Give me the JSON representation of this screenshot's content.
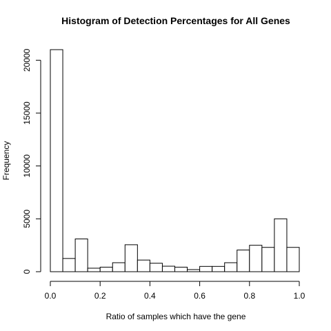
{
  "chart_data": {
    "type": "bar",
    "subtype": "histogram",
    "title": "Histogram of Detection Percentages for All Genes",
    "xlabel": "Ratio of samples which have the gene",
    "ylabel": "Frequency",
    "bin_edges": [
      0.0,
      0.05,
      0.1,
      0.15,
      0.2,
      0.25,
      0.3,
      0.35,
      0.4,
      0.45,
      0.5,
      0.55,
      0.6,
      0.65,
      0.7,
      0.75,
      0.8,
      0.85,
      0.9,
      0.95,
      1.0
    ],
    "values": [
      21000,
      1250,
      3100,
      330,
      430,
      850,
      2550,
      1100,
      800,
      520,
      430,
      200,
      500,
      500,
      850,
      2050,
      2500,
      2300,
      5000,
      2300
    ],
    "xlim": [
      0.0,
      1.0
    ],
    "ylim": [
      0,
      21000
    ],
    "x_ticks": [
      0.0,
      0.2,
      0.4,
      0.6,
      0.8,
      1.0
    ],
    "x_tick_labels": [
      "0.0",
      "0.2",
      "0.4",
      "0.6",
      "0.8",
      "1.0"
    ],
    "y_ticks": [
      0,
      5000,
      10000,
      15000,
      20000
    ],
    "y_tick_labels": [
      "0",
      "5000",
      "10000",
      "15000",
      "20000"
    ],
    "grid": false,
    "legend": "none"
  }
}
